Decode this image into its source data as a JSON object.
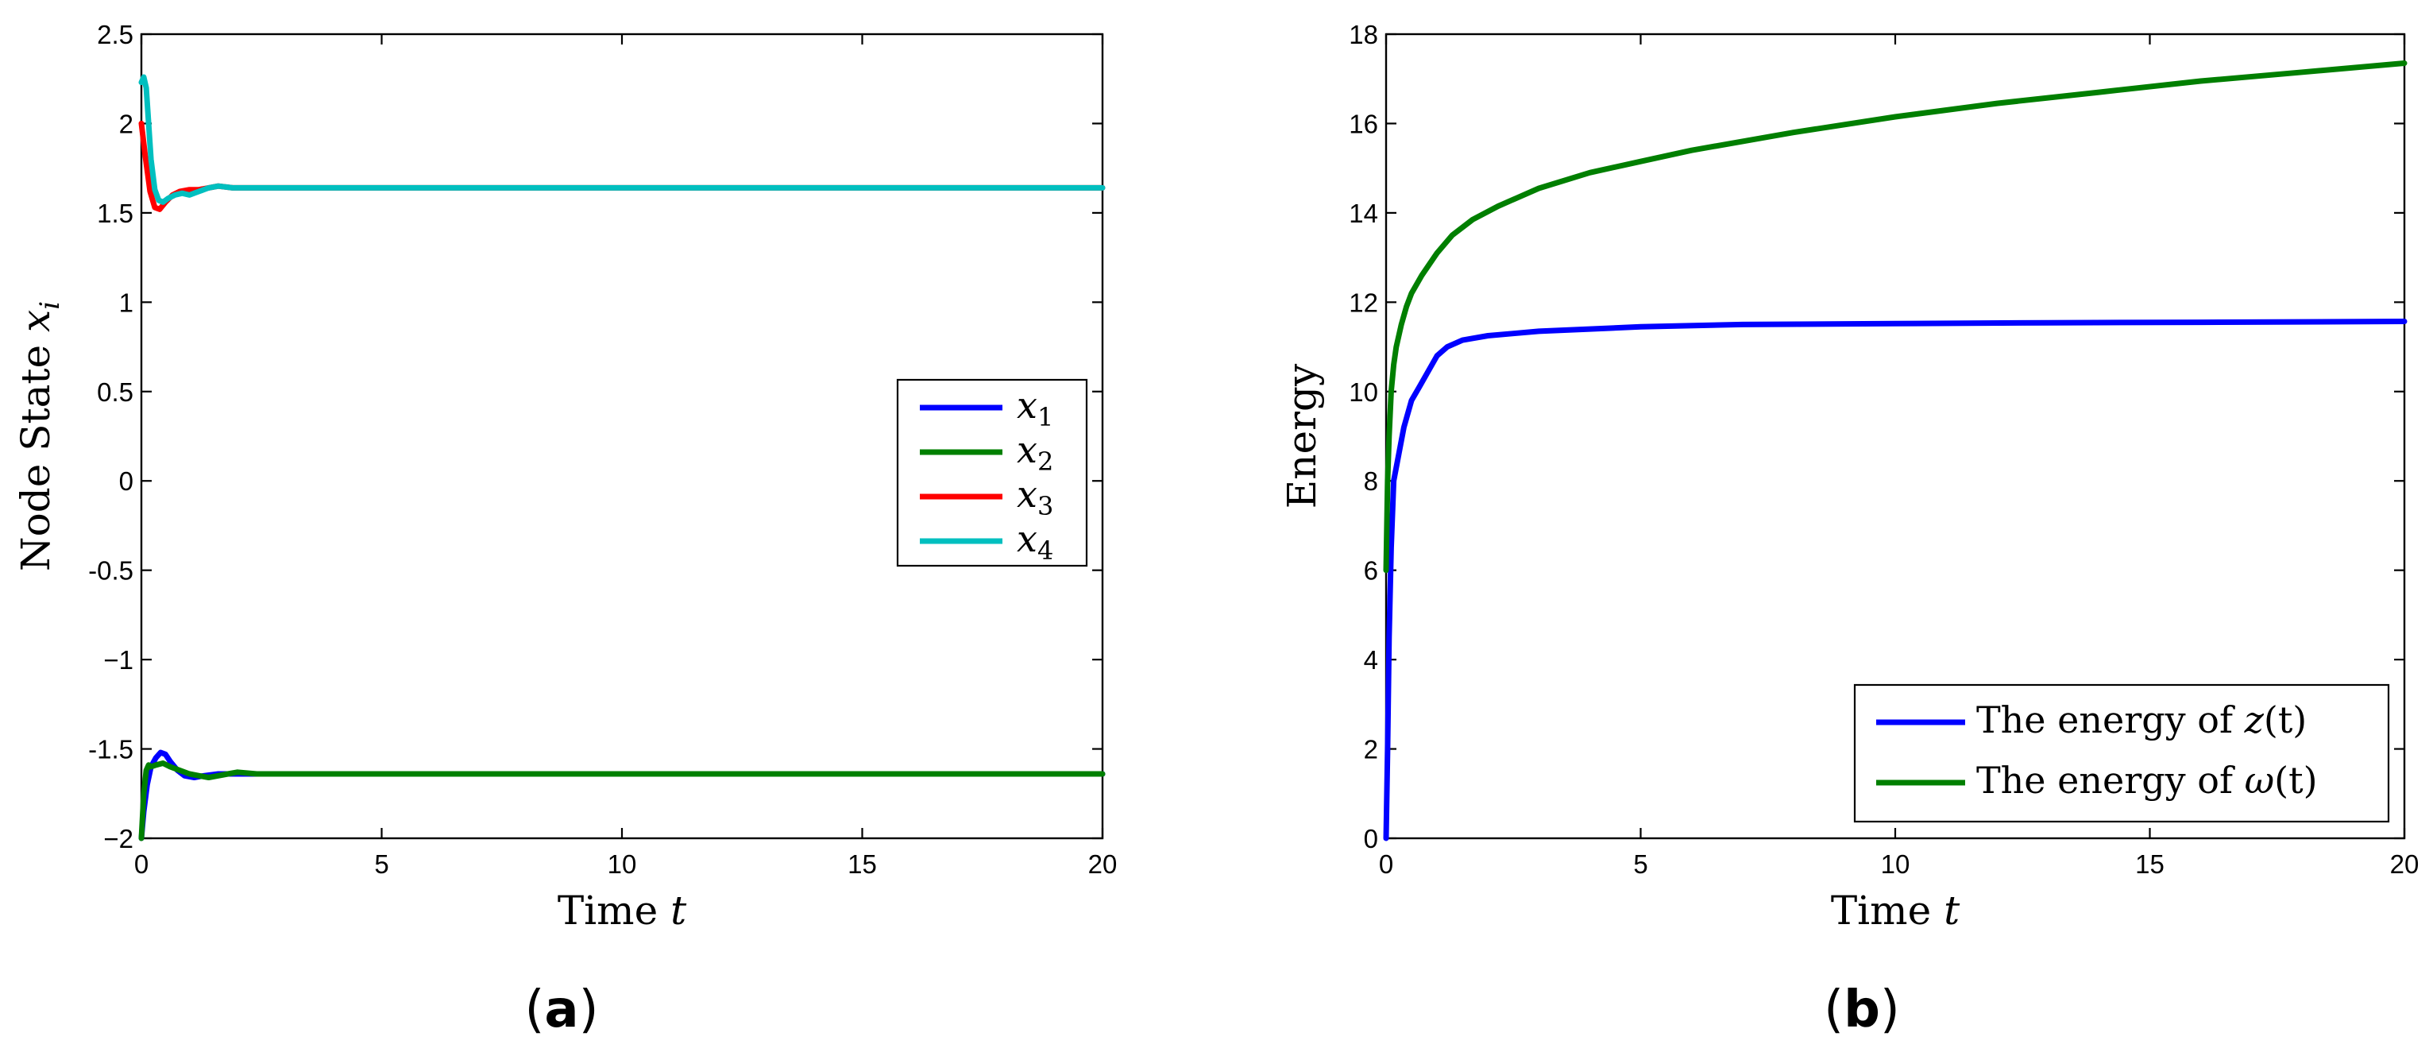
{
  "chart_data": [
    {
      "type": "line",
      "panel_label": "(a)",
      "xlabel": "Time",
      "xlabel_var": "t",
      "ylabel": "Node State",
      "ylabel_var": "x",
      "ylabel_sub": "i",
      "xlim": [
        0,
        20
      ],
      "ylim": [
        -2,
        2.5
      ],
      "xticks": [
        0,
        5,
        10,
        15,
        20
      ],
      "xtick_labels": [
        "0",
        "5",
        "10",
        "15",
        "20"
      ],
      "yticks": [
        -2,
        -1.5,
        -1,
        -0.5,
        0,
        0.5,
        1,
        1.5,
        2,
        2.5
      ],
      "ytick_labels": [
        "−2",
        "-1.5",
        "−1",
        "-0.5",
        "0",
        "0.5",
        "1",
        "1.5",
        "2",
        "2.5"
      ],
      "grid": false,
      "legend_position": "right",
      "series": [
        {
          "name": "x",
          "sub": "1",
          "color": "#0000ff",
          "x": [
            0,
            0.05,
            0.12,
            0.2,
            0.3,
            0.4,
            0.5,
            0.6,
            0.75,
            0.9,
            1.1,
            1.3,
            1.6,
            2.0,
            2.5,
            3,
            4,
            5,
            7,
            10,
            15,
            20
          ],
          "y": [
            -2.0,
            -1.85,
            -1.7,
            -1.6,
            -1.55,
            -1.52,
            -1.53,
            -1.57,
            -1.62,
            -1.65,
            -1.66,
            -1.65,
            -1.64,
            -1.64,
            -1.64,
            -1.64,
            -1.64,
            -1.64,
            -1.64,
            -1.64,
            -1.64,
            -1.64
          ]
        },
        {
          "name": "x",
          "sub": "2",
          "color": "#008000",
          "x": [
            0,
            0.05,
            0.1,
            0.15,
            0.2,
            0.3,
            0.45,
            0.6,
            0.8,
            1.0,
            1.2,
            1.4,
            1.6,
            1.8,
            2.0,
            2.4,
            3,
            4,
            5,
            7,
            10,
            15,
            20
          ],
          "y": [
            -2.0,
            -1.75,
            -1.62,
            -1.59,
            -1.6,
            -1.59,
            -1.58,
            -1.6,
            -1.62,
            -1.64,
            -1.65,
            -1.66,
            -1.65,
            -1.64,
            -1.63,
            -1.64,
            -1.64,
            -1.64,
            -1.64,
            -1.64,
            -1.64,
            -1.64,
            -1.64
          ]
        },
        {
          "name": "x",
          "sub": "3",
          "color": "#ff0000",
          "x": [
            0,
            0.08,
            0.18,
            0.28,
            0.38,
            0.5,
            0.65,
            0.8,
            1.0,
            1.2,
            1.4,
            1.6,
            1.9,
            2.3,
            3,
            4,
            5,
            7,
            10,
            15,
            20
          ],
          "y": [
            2.0,
            1.82,
            1.62,
            1.53,
            1.52,
            1.56,
            1.6,
            1.62,
            1.63,
            1.63,
            1.64,
            1.65,
            1.64,
            1.64,
            1.64,
            1.64,
            1.64,
            1.64,
            1.64,
            1.64,
            1.64
          ]
        },
        {
          "name": "x",
          "sub": "4",
          "color": "#00bfbf",
          "x": [
            0,
            0.05,
            0.1,
            0.15,
            0.2,
            0.28,
            0.36,
            0.45,
            0.55,
            0.7,
            0.85,
            1.0,
            1.2,
            1.4,
            1.6,
            1.9,
            2.3,
            3,
            4,
            5,
            7,
            10,
            15,
            20
          ],
          "y": [
            2.23,
            2.26,
            2.2,
            2.0,
            1.8,
            1.63,
            1.57,
            1.56,
            1.58,
            1.6,
            1.61,
            1.6,
            1.62,
            1.64,
            1.65,
            1.64,
            1.64,
            1.64,
            1.64,
            1.64,
            1.64,
            1.64,
            1.64,
            1.64
          ]
        }
      ]
    },
    {
      "type": "line",
      "panel_label": "(b)",
      "xlabel": "Time",
      "xlabel_var": "t",
      "ylabel": "Energy",
      "xlim": [
        0,
        20
      ],
      "ylim": [
        0,
        18
      ],
      "xticks": [
        0,
        5,
        10,
        15,
        20
      ],
      "xtick_labels": [
        "0",
        "5",
        "10",
        "15",
        "20"
      ],
      "yticks": [
        0,
        2,
        4,
        6,
        8,
        10,
        12,
        14,
        16,
        18
      ],
      "ytick_labels": [
        "0",
        "2",
        "4",
        "6",
        "8",
        "10",
        "12",
        "14",
        "16",
        "18"
      ],
      "grid": false,
      "legend_position": "bottom-right",
      "series": [
        {
          "name": "The energy of z(t)",
          "legend_prefix": "The energy of ",
          "legend_var": "z",
          "legend_suffix": "(t)",
          "color": "#0000ff",
          "x": [
            0,
            0.03,
            0.06,
            0.1,
            0.15,
            0.25,
            0.35,
            0.5,
            0.65,
            0.8,
            1.0,
            1.2,
            1.5,
            2.0,
            2.5,
            3,
            4,
            5,
            7,
            10,
            13,
            16,
            20
          ],
          "y": [
            0,
            2.0,
            4.5,
            6.5,
            8.0,
            8.6,
            9.2,
            9.8,
            10.1,
            10.4,
            10.8,
            11.0,
            11.15,
            11.25,
            11.3,
            11.35,
            11.4,
            11.45,
            11.5,
            11.52,
            11.54,
            11.55,
            11.57
          ]
        },
        {
          "name": "The energy of ω(t)",
          "legend_prefix": "The energy of ",
          "legend_var": "ω",
          "legend_suffix": "(t)",
          "color": "#007f00",
          "x": [
            0,
            0.03,
            0.06,
            0.1,
            0.15,
            0.2,
            0.3,
            0.4,
            0.5,
            0.7,
            1.0,
            1.3,
            1.7,
            2.2,
            3,
            4,
            5,
            6,
            8,
            10,
            12,
            14,
            16,
            18,
            20
          ],
          "y": [
            6.0,
            8.0,
            9.0,
            10.0,
            10.6,
            11.0,
            11.5,
            11.9,
            12.2,
            12.6,
            13.1,
            13.5,
            13.85,
            14.15,
            14.55,
            14.9,
            15.15,
            15.4,
            15.8,
            16.15,
            16.45,
            16.7,
            16.95,
            17.15,
            17.35
          ]
        }
      ]
    }
  ]
}
